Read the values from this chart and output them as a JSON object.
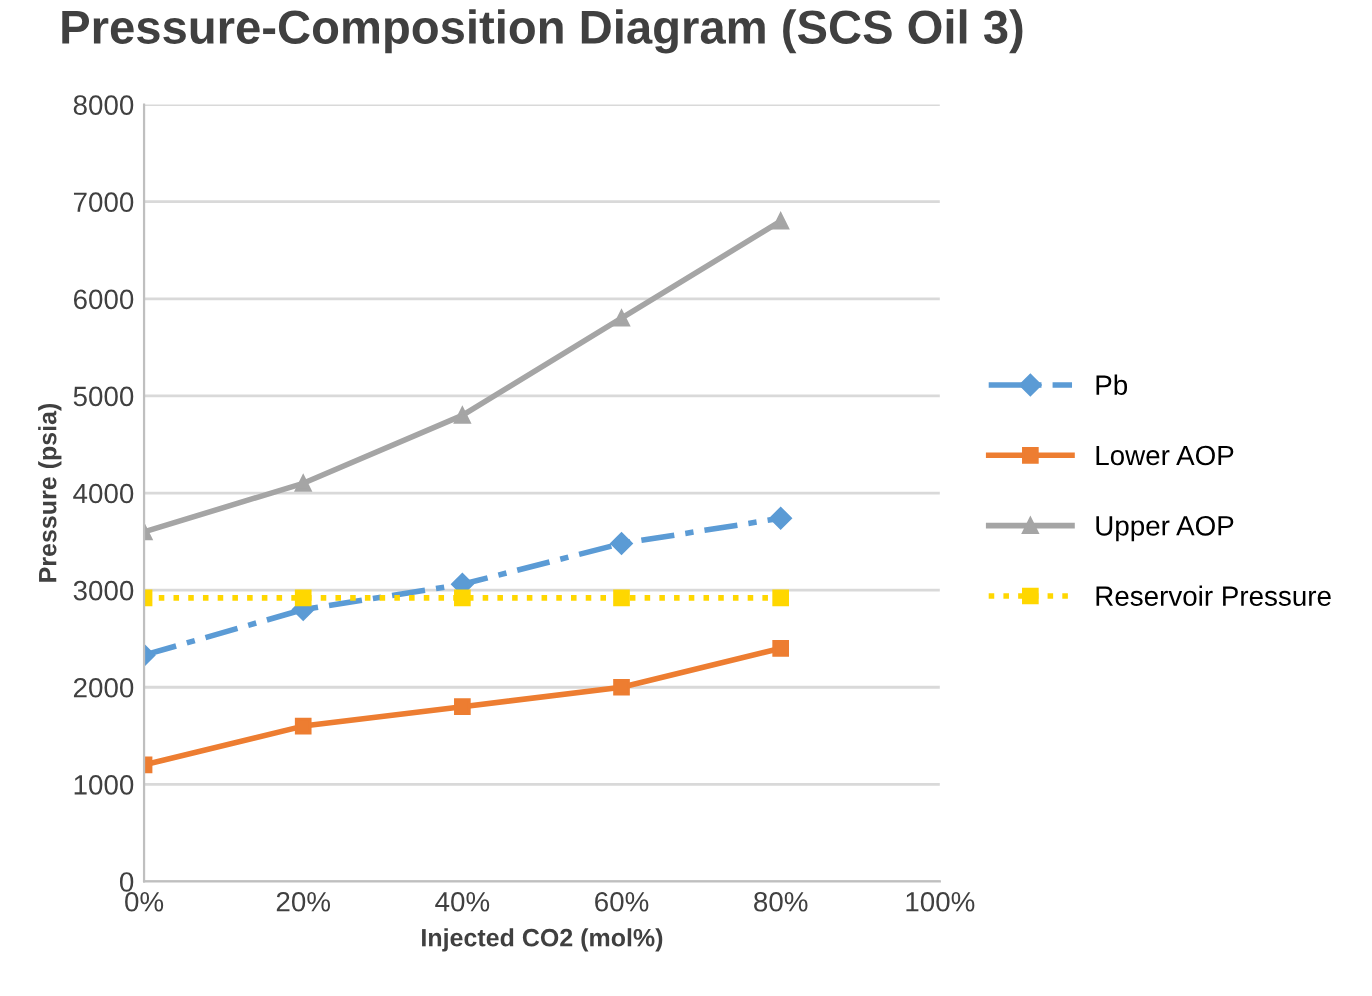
{
  "chart_data": {
    "type": "line",
    "title": "Pressure-Composition Diagram (SCS Oil 3)",
    "xlabel": "Injected CO2 (mol%)",
    "ylabel": "Pressure (psia)",
    "x": [
      0,
      20,
      40,
      60,
      80
    ],
    "series": [
      {
        "name": "Pb",
        "color": "#5b9bd5",
        "marker": "diamond",
        "line_style": "dashed",
        "values": [
          2330,
          2800,
          3060,
          3480,
          3740
        ]
      },
      {
        "name": "Lower AOP",
        "color": "#ed7d31",
        "marker": "square",
        "line_style": "solid",
        "values": [
          1200,
          1600,
          1800,
          2000,
          2400
        ]
      },
      {
        "name": "Upper AOP",
        "color": "#a5a5a5",
        "marker": "triangle",
        "line_style": "solid",
        "values": [
          3600,
          4100,
          4800,
          5800,
          6800
        ]
      },
      {
        "name": "Reservoir Pressure",
        "color": "#ffd700",
        "marker": "square",
        "line_style": "dotted",
        "values": [
          2920,
          2920,
          2920,
          2920,
          2920
        ]
      }
    ],
    "xlim": [
      0,
      100
    ],
    "xticks": [
      {
        "value": 0,
        "label": "0%"
      },
      {
        "value": 20,
        "label": "20%"
      },
      {
        "value": 40,
        "label": "40%"
      },
      {
        "value": 60,
        "label": "60%"
      },
      {
        "value": 80,
        "label": "80%"
      },
      {
        "value": 100,
        "label": "100%"
      }
    ],
    "ylim": [
      0,
      8000
    ],
    "yticks": [
      0,
      1000,
      2000,
      3000,
      4000,
      5000,
      6000,
      7000,
      8000
    ],
    "grid": "y",
    "legend": "right"
  }
}
